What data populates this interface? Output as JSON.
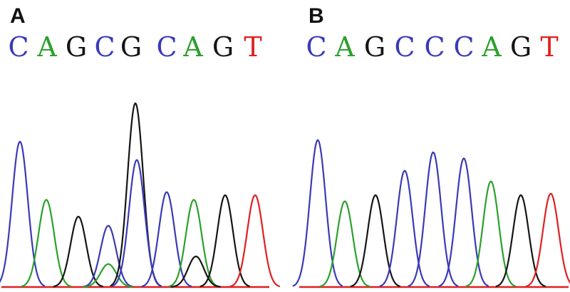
{
  "colors": {
    "A": "#2ca02c",
    "C": "#3a3ab8",
    "G": "#151515",
    "T": "#e02020",
    "baseline": "#e02020"
  },
  "chart_data": [
    {
      "type": "line",
      "panel_label": "A",
      "sequence": [
        "C",
        "A",
        "G",
        "C",
        "G",
        "C",
        "A",
        "G",
        "T"
      ],
      "peaks": [
        {
          "base": "C",
          "pos": 28,
          "height": 0.95
        },
        {
          "base": "A",
          "pos": 65,
          "height": 0.57
        },
        {
          "base": "G",
          "pos": 110,
          "height": 0.46
        },
        {
          "base": "C",
          "pos": 152,
          "height": 0.4
        },
        {
          "base": "A",
          "pos": 152,
          "height": 0.15
        },
        {
          "base": "G",
          "pos": 190,
          "height": 1.2
        },
        {
          "base": "C",
          "pos": 192,
          "height": 0.83
        },
        {
          "base": "C",
          "pos": 234,
          "height": 0.62
        },
        {
          "base": "A",
          "pos": 272,
          "height": 0.57
        },
        {
          "base": "G",
          "pos": 275,
          "height": 0.2
        },
        {
          "base": "G",
          "pos": 316,
          "height": 0.6
        },
        {
          "base": "T",
          "pos": 358,
          "height": 0.6
        }
      ]
    },
    {
      "type": "line",
      "panel_label": "B",
      "sequence": [
        "C",
        "A",
        "G",
        "C",
        "C",
        "C",
        "A",
        "G",
        "T"
      ],
      "peaks": [
        {
          "base": "C",
          "pos": 446,
          "height": 0.96
        },
        {
          "base": "A",
          "pos": 484,
          "height": 0.56
        },
        {
          "base": "G",
          "pos": 527,
          "height": 0.6
        },
        {
          "base": "C",
          "pos": 568,
          "height": 0.76
        },
        {
          "base": "C",
          "pos": 608,
          "height": 0.88
        },
        {
          "base": "C",
          "pos": 651,
          "height": 0.84
        },
        {
          "base": "A",
          "pos": 689,
          "height": 0.69
        },
        {
          "base": "G",
          "pos": 731,
          "height": 0.6
        },
        {
          "base": "T",
          "pos": 773,
          "height": 0.61
        }
      ]
    }
  ]
}
